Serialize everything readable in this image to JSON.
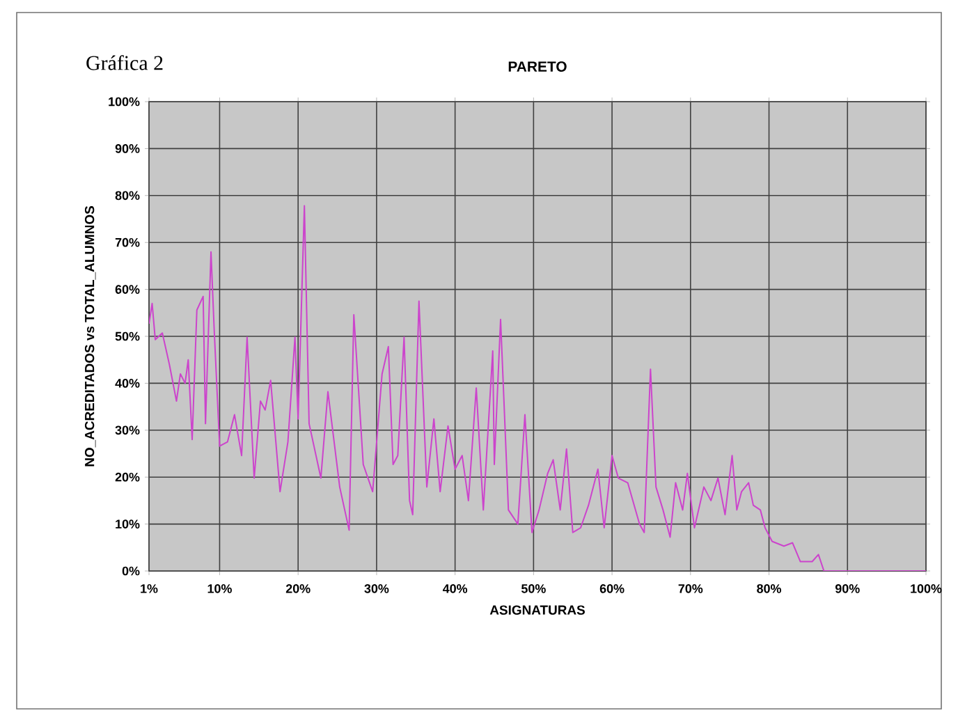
{
  "chart_data": {
    "type": "line",
    "title": "PARETO",
    "xlabel": "ASIGNATURAS",
    "ylabel": "NO_ACREDITADOS vs TOTAL_ALUMNOS",
    "annotations": [
      "Gráfica 2"
    ],
    "grid": true,
    "xlim": [
      1,
      100
    ],
    "xticks": [
      {
        "value": 1,
        "label": "1%"
      },
      {
        "value": 10,
        "label": "10%"
      },
      {
        "value": 20,
        "label": "20%"
      },
      {
        "value": 30,
        "label": "30%"
      },
      {
        "value": 40,
        "label": "40%"
      },
      {
        "value": 50,
        "label": "50%"
      },
      {
        "value": 60,
        "label": "60%"
      },
      {
        "value": 70,
        "label": "70%"
      },
      {
        "value": 80,
        "label": "80%"
      },
      {
        "value": 90,
        "label": "90%"
      },
      {
        "value": 100,
        "label": "100%"
      }
    ],
    "ylim": [
      0,
      100
    ],
    "yticks": [
      {
        "value": 0,
        "label": "0%"
      },
      {
        "value": 10,
        "label": "10%"
      },
      {
        "value": 20,
        "label": "20%"
      },
      {
        "value": 30,
        "label": "30%"
      },
      {
        "value": 40,
        "label": "40%"
      },
      {
        "value": 50,
        "label": "50%"
      },
      {
        "value": 60,
        "label": "60%"
      },
      {
        "value": 70,
        "label": "70%"
      },
      {
        "value": 80,
        "label": "80%"
      },
      {
        "value": 90,
        "label": "90%"
      },
      {
        "value": 100,
        "label": "100%"
      }
    ],
    "series": [
      {
        "color": "#cc44cc",
        "x": [
          1,
          1.4,
          1.8,
          2.7,
          3.6,
          4.5,
          5,
          5.6,
          6,
          6.5,
          7.1,
          7.9,
          8.2,
          8.9,
          9.3,
          10,
          11,
          11.9,
          12.8,
          13.5,
          14.4,
          15.2,
          15.8,
          16.5,
          17.7,
          18.7,
          19.6,
          20,
          20.8,
          21.4,
          22.9,
          23.8,
          25.3,
          26.5,
          27.1,
          28.3,
          29.5,
          30.7,
          31.5,
          32.1,
          32.7,
          33.5,
          34.2,
          34.6,
          35.4,
          36.4,
          37.3,
          38.1,
          39.1,
          40,
          40.9,
          41.7,
          42.7,
          43.6,
          44.8,
          45,
          45.8,
          46.8,
          48,
          48.9,
          49.8,
          50.7,
          51.8,
          52.5,
          53.4,
          54.2,
          55,
          56,
          57,
          58.2,
          59,
          60,
          60.8,
          62,
          63.5,
          64.1,
          64.9,
          65.6,
          66.5,
          67.4,
          68.1,
          69,
          69.6,
          70.5,
          71.7,
          72.6,
          73.5,
          74.4,
          75.3,
          75.9,
          76.5,
          77.4,
          78,
          78.9,
          79.5,
          80.4,
          81.9,
          83,
          84,
          85.5,
          86.3,
          87,
          88,
          100
        ],
        "values": [
          52.7,
          57,
          49.3,
          50.7,
          44,
          36.2,
          42,
          40,
          45,
          28,
          55.6,
          58.5,
          31.4,
          68,
          51.7,
          26.6,
          27.5,
          33.3,
          24.6,
          49.8,
          19.8,
          36.2,
          34.3,
          40.6,
          16.9,
          27.5,
          49.8,
          32.4,
          77.8,
          31.4,
          19.8,
          38.2,
          17.9,
          8.7,
          54.6,
          22.7,
          16.9,
          42,
          47.8,
          22.7,
          24.6,
          49.8,
          15,
          12,
          57.5,
          17.9,
          32.4,
          16.9,
          30.9,
          21.7,
          24.6,
          15,
          39,
          13,
          46.9,
          22.7,
          53.6,
          13,
          10,
          33.3,
          8.2,
          13,
          20.8,
          23.7,
          13,
          26,
          8.2,
          9.2,
          14,
          21.7,
          9.2,
          24.6,
          19.8,
          18.8,
          10,
          8.2,
          43,
          17.9,
          13,
          7.2,
          18.8,
          13,
          20.8,
          9.2,
          17.9,
          15,
          19.8,
          12,
          24.6,
          13,
          16.9,
          18.8,
          14,
          13,
          9.2,
          6.3,
          5.3,
          6,
          2,
          2,
          3.5,
          0,
          0,
          0
        ]
      }
    ]
  }
}
